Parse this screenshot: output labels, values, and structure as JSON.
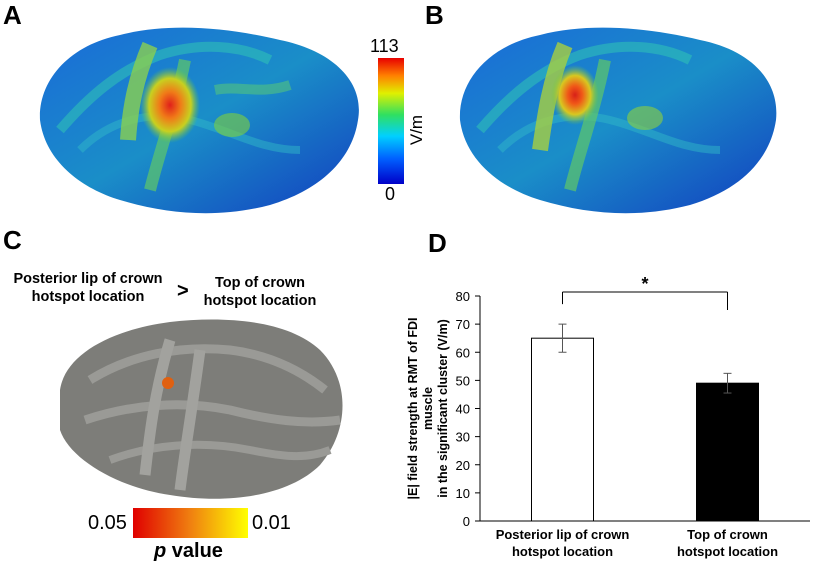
{
  "panels": {
    "a": "A",
    "b": "B",
    "c": "C",
    "d": "D"
  },
  "colorbar": {
    "max": "113",
    "min": "0",
    "unit": "V/m"
  },
  "comparison": {
    "left_line1": "Posterior lip of crown",
    "left_line2": "hotspot location",
    "operator": ">",
    "right_line1": "Top of crown",
    "right_line2": "hotspot location"
  },
  "p_scale": {
    "left": "0.05",
    "right": "0.01",
    "label_italic": "p",
    "label_rest": " value"
  },
  "chart_data": {
    "type": "bar",
    "categories": [
      [
        "Posterior lip of crown",
        "hotspot location"
      ],
      [
        "Top of crown",
        "hotspot location"
      ]
    ],
    "series": [
      {
        "values": [
          65,
          49
        ],
        "errors": [
          5,
          3.5
        ],
        "colors": [
          "#ffffff",
          "#000000"
        ]
      }
    ],
    "ylabel_lines": [
      "|E| field strength at RMT of FDI",
      "muscle",
      "in the significant cluster (V/m)"
    ],
    "ylim": [
      0,
      80
    ],
    "yticks": [
      0,
      10,
      20,
      30,
      40,
      50,
      60,
      70,
      80
    ],
    "significance": "*",
    "grid": false
  }
}
